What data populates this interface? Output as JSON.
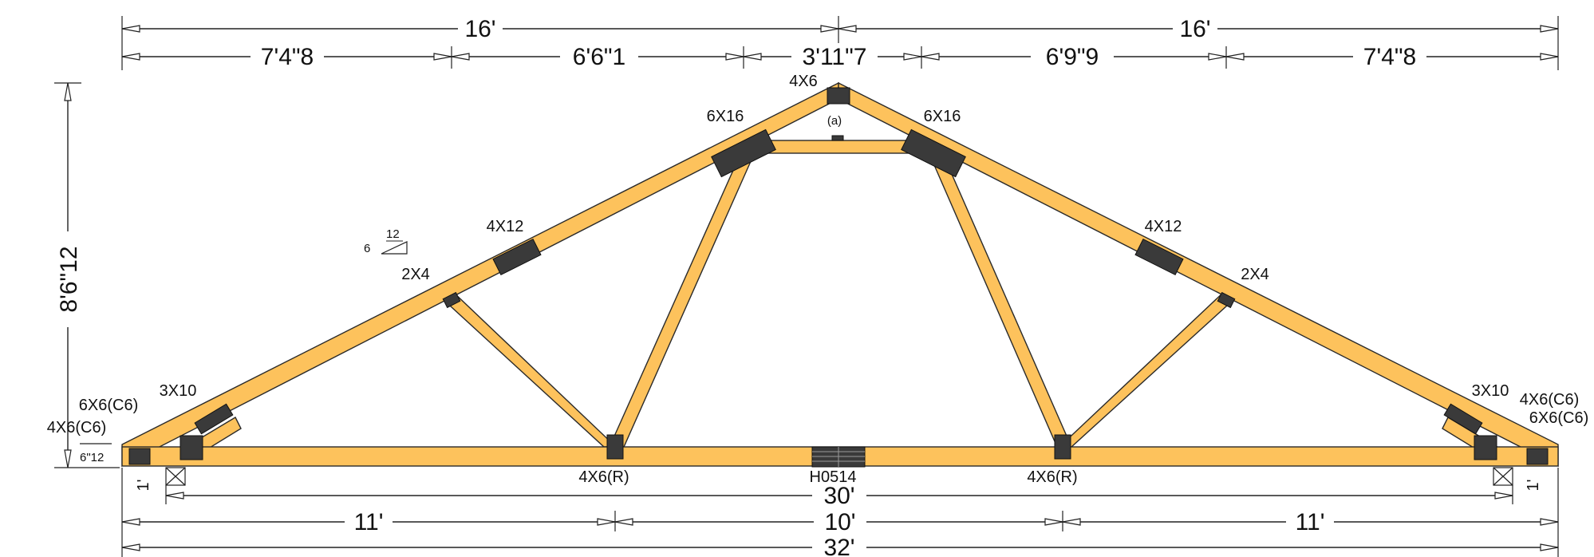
{
  "top_dims_major": [
    "16'",
    "16'"
  ],
  "top_dims_panels": [
    "7'4\"8",
    "6'6\"1",
    "3'11\"7",
    "6'9\"9",
    "7'4\"8"
  ],
  "height_dim": "8'6\"12",
  "heel_dim": "6\"12",
  "overhang_left": "1'",
  "overhang_right": "1'",
  "span_dim": "30'",
  "bottom_panels": [
    "11'",
    "10'",
    "11'"
  ],
  "overall_dim": "32'",
  "pitch": {
    "rise": "6",
    "run": "12"
  },
  "plates": {
    "apex": "4X6",
    "apex_note": "(a)",
    "left_upper": "6X16",
    "right_upper": "6X16",
    "left_top_mid": "4X12",
    "right_top_mid": "4X12",
    "left_web_top": "2X4",
    "right_web_top": "2X4",
    "left_heel_web": "3X10",
    "right_heel_web": "3X10",
    "left_heel_a": "6X6(C6)",
    "left_heel_b": "4X6(C6)",
    "right_heel_a": "4X6(C6)",
    "right_heel_b": "6X6(C6)",
    "left_bottom": "4X6(R)",
    "right_bottom": "4X6(R)",
    "splice": "H0514"
  }
}
